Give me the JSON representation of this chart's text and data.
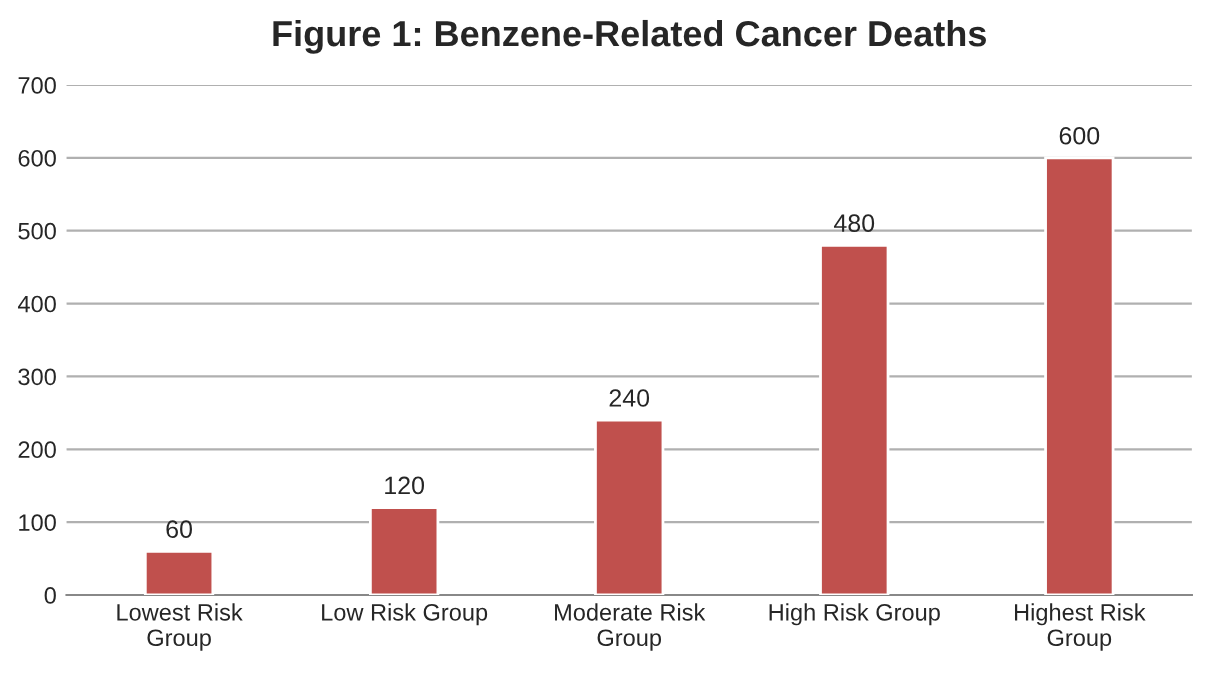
{
  "chart_data": {
    "type": "bar",
    "title": "Figure 1: Benzene-Related Cancer Deaths",
    "categories": [
      "Lowest Risk Group",
      "Low Risk Group",
      "Moderate Risk Group",
      "High Risk Group",
      "Highest Risk Group"
    ],
    "values": [
      60,
      120,
      240,
      480,
      600
    ],
    "color": "#c0504d",
    "ylim": [
      0,
      700
    ],
    "yticks": [
      0,
      100,
      200,
      300,
      400,
      500,
      600,
      700
    ],
    "grid": "y",
    "data_labels": true
  }
}
